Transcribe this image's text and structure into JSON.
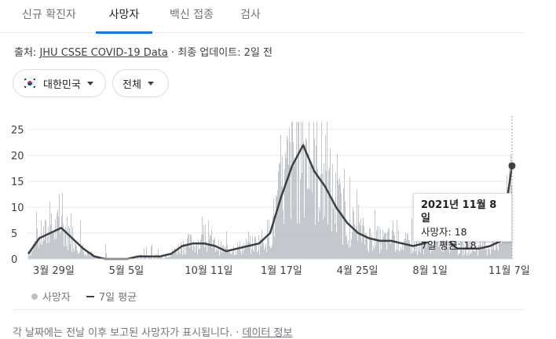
{
  "tabs": [
    {
      "label": "신규 확진자",
      "active": false
    },
    {
      "label": "사망자",
      "active": true
    },
    {
      "label": "백신 접종",
      "active": false
    },
    {
      "label": "검사",
      "active": false
    }
  ],
  "source": {
    "prefix": "출처: ",
    "link": "JHU CSSE COVID-19 Data",
    "suffix": " · 최종 업데이트: 2일 전"
  },
  "filters": {
    "country": "대한민국",
    "scope": "전체"
  },
  "colors": {
    "bar": "#bdc1c6",
    "line": "#3c4043",
    "accent": "#1a73e8"
  },
  "chart_data": {
    "type": "bar",
    "series": [
      {
        "name": "사망자",
        "kind": "bar"
      },
      {
        "name": "7일 평균",
        "kind": "line"
      }
    ],
    "y_ticks": [
      0,
      5,
      10,
      15,
      20,
      25
    ],
    "ylim": [
      0,
      27
    ],
    "x_tick_labels": [
      "3월 29일",
      "5월 5일",
      "10월 11일",
      "1월 17일",
      "4월 25일",
      "8월 1일",
      "11월 7일"
    ],
    "note": "series values estimated from chart; x is weeks since first shown week",
    "x_week_values": [
      0,
      2,
      4,
      6,
      8,
      10,
      12,
      14,
      16,
      18,
      20,
      22,
      24,
      26,
      28,
      30,
      32,
      34,
      36,
      38,
      40,
      42,
      44,
      46,
      48,
      50,
      52,
      54,
      56,
      58,
      60,
      62,
      64,
      66,
      68,
      70,
      72,
      74,
      76,
      78,
      80,
      82,
      84,
      86,
      88
    ],
    "avg_values": [
      1,
      4,
      5,
      6,
      4,
      2,
      0.5,
      0,
      0,
      0,
      0.5,
      0.5,
      0.5,
      1,
      2.5,
      3,
      3,
      2.5,
      1.5,
      2,
      2.5,
      3,
      5,
      12,
      18,
      22,
      17,
      14,
      10,
      7,
      5,
      4,
      3.5,
      3.5,
      3,
      2.5,
      3,
      4,
      4,
      2,
      2,
      2,
      2.5,
      3.5,
      18
    ],
    "tooltip": {
      "date": "2021년 11월 8일",
      "deaths": 18,
      "avg": 18
    }
  },
  "tooltip": {
    "title": "2021년 11월 8일",
    "deaths": "사망자: 18",
    "avg": "7일 평균: 18"
  },
  "legend": {
    "bar": "사망자",
    "line": "7일 평균"
  },
  "footer": {
    "text": "각 날짜에는 전날 이후 보고된 사망자가 표시됩니다. · ",
    "link": "데이터 정보"
  }
}
